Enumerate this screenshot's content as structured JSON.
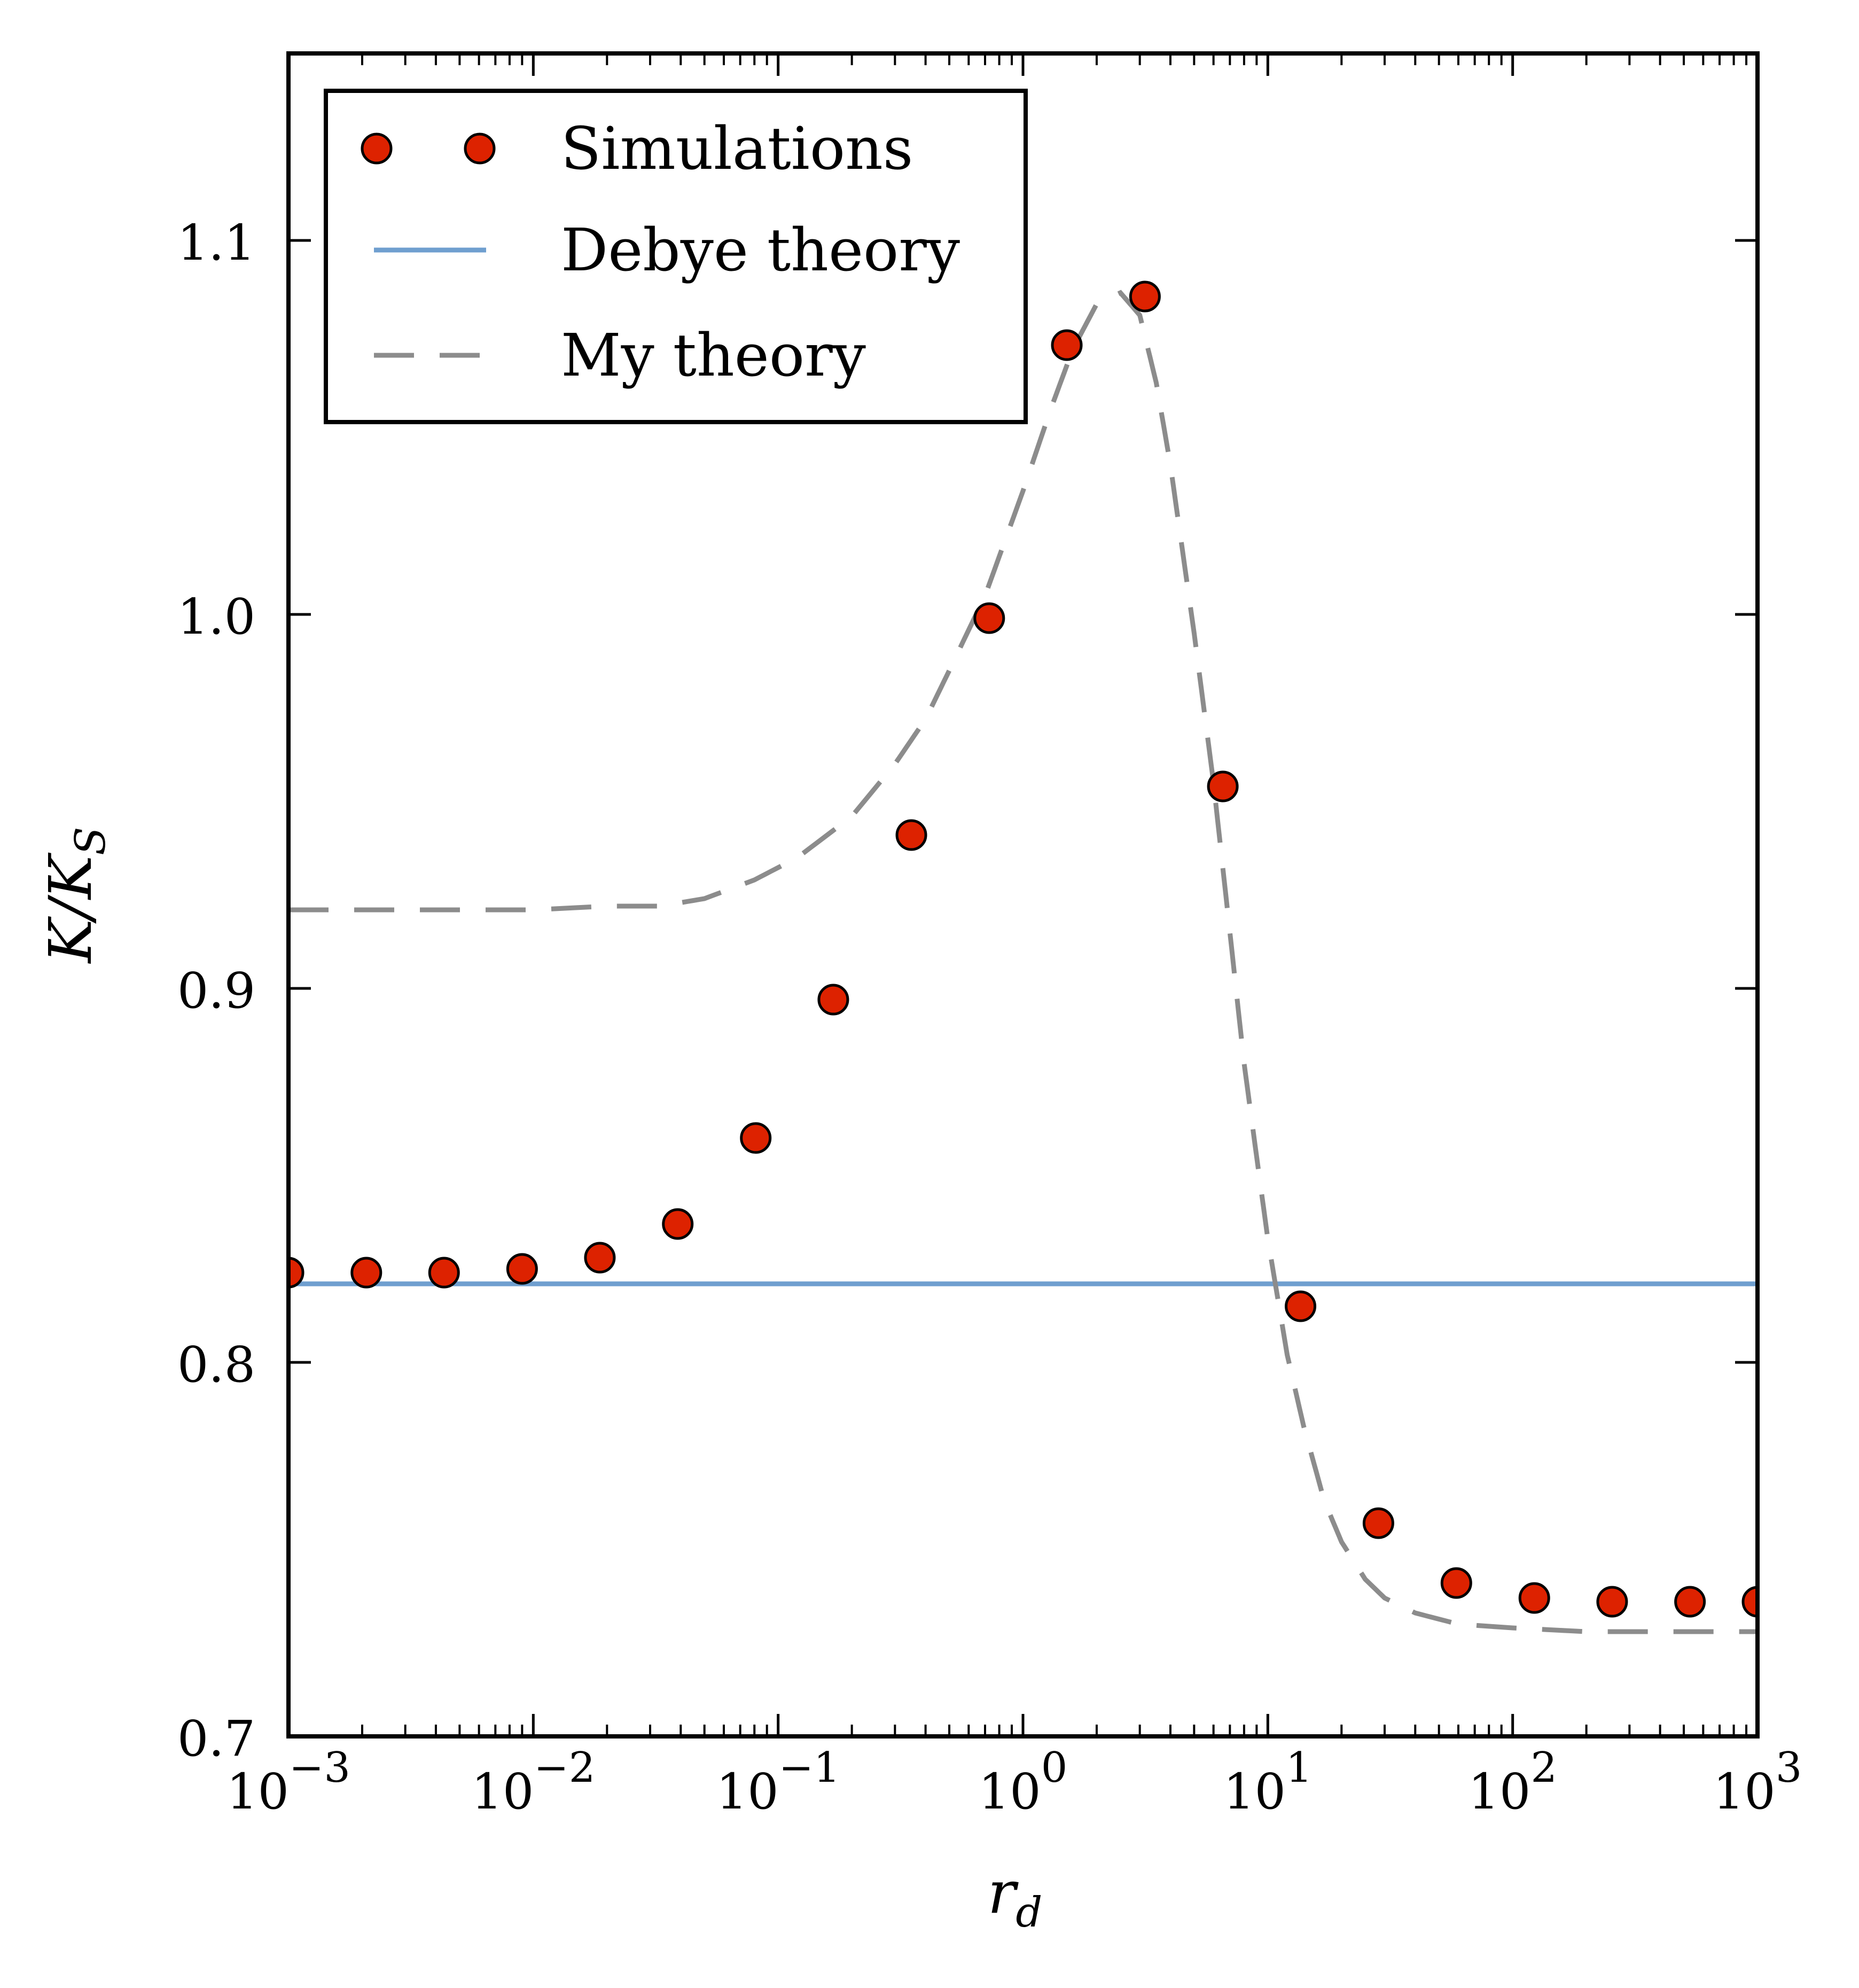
{
  "chart_data": {
    "type": "scatter",
    "x_scale": "log",
    "xlim": [
      0.001,
      1000
    ],
    "ylim": [
      0.7,
      1.15
    ],
    "xlabel": "r_d",
    "ylabel": "K/K_S",
    "xlabel_main": "r",
    "xlabel_sub": "d",
    "ylabel_text": "K/K",
    "ylabel_sub": "S",
    "x_ticks": [
      {
        "value": 0.001,
        "base": "10",
        "exp": "−3"
      },
      {
        "value": 0.01,
        "base": "10",
        "exp": "−2"
      },
      {
        "value": 0.1,
        "base": "10",
        "exp": "−1"
      },
      {
        "value": 1,
        "base": "10",
        "exp": "0"
      },
      {
        "value": 10,
        "base": "10",
        "exp": "1"
      },
      {
        "value": 100,
        "base": "10",
        "exp": "2"
      },
      {
        "value": 1000,
        "base": "10",
        "exp": "3"
      }
    ],
    "y_ticks": [
      {
        "value": 0.7,
        "label": "0.7"
      },
      {
        "value": 0.8,
        "label": "0.8"
      },
      {
        "value": 0.9,
        "label": "0.9"
      },
      {
        "value": 1.0,
        "label": "1.0"
      },
      {
        "value": 1.1,
        "label": "1.1"
      }
    ],
    "legend_position": "top-left",
    "grid": false,
    "series": [
      {
        "name": "Simulations",
        "style": "markers",
        "color": "#dd2200",
        "x": [
          0.001,
          0.00208,
          0.00432,
          0.009,
          0.0187,
          0.0389,
          0.081,
          0.168,
          0.35,
          0.728,
          1.51,
          3.15,
          6.55,
          13.6,
          28.3,
          58.9,
          122.6,
          254.9,
          530,
          1000
        ],
        "y": [
          0.824,
          0.824,
          0.824,
          0.825,
          0.828,
          0.837,
          0.86,
          0.897,
          0.941,
          0.999,
          1.072,
          1.085,
          0.954,
          0.815,
          0.757,
          0.741,
          0.737,
          0.736,
          0.736,
          0.736
        ]
      },
      {
        "name": "Debye theory",
        "style": "solid",
        "color": "#6f9fcf",
        "x": [
          0.001,
          1000
        ],
        "y": [
          0.821,
          0.821
        ]
      },
      {
        "name": "My theory",
        "style": "dashed",
        "color": "#8c8c8c",
        "x": [
          0.001,
          0.003,
          0.01,
          0.02,
          0.033,
          0.05,
          0.08,
          0.12,
          0.2,
          0.3,
          0.4,
          0.5,
          0.7,
          1.0,
          1.3,
          1.6,
          2.0,
          2.5,
          3.0,
          3.5,
          4.0,
          5.0,
          6.0,
          7.0,
          8.0,
          9.0,
          10.0,
          12.0,
          14.0,
          17.0,
          20.0,
          25.0,
          30.0,
          40.0,
          60.0,
          100.0,
          200.0,
          400.0,
          1000.0
        ],
        "y": [
          0.921,
          0.921,
          0.921,
          0.922,
          0.922,
          0.924,
          0.929,
          0.935,
          0.946,
          0.96,
          0.972,
          0.985,
          1.005,
          1.033,
          1.055,
          1.071,
          1.083,
          1.086,
          1.08,
          1.062,
          1.04,
          0.995,
          0.955,
          0.915,
          0.88,
          0.855,
          0.833,
          0.802,
          0.783,
          0.763,
          0.752,
          0.742,
          0.737,
          0.733,
          0.73,
          0.729,
          0.728,
          0.728,
          0.728
        ]
      }
    ]
  }
}
